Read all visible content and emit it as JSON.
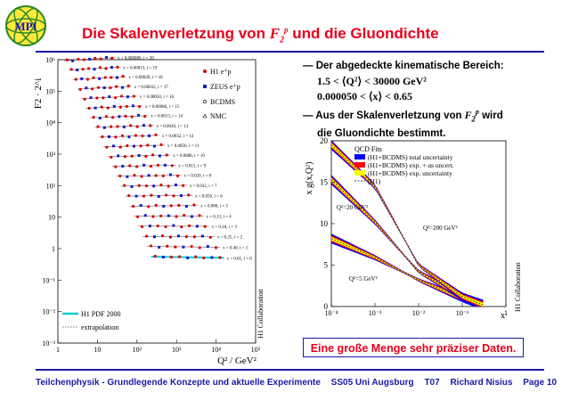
{
  "header": {
    "logo_text": "MPI",
    "title_prefix": "Die Skalenverletzung von ",
    "title_f": "F",
    "title_sub": "2",
    "title_sup": "p",
    "title_suffix": " und die Gluondichte"
  },
  "bullets": {
    "b1": "— Der abgedeckte kinematische Bereich:",
    "m1": "1.5 < ⟨Q²⟩ < 30000 GeV²",
    "m2": "0.000050 < ⟨x⟩ < 0.65",
    "b2_prefix": "— Aus der Skalenverletzung von ",
    "b2_f": "F",
    "b2_sub": "2",
    "b2_sup": "p",
    "b2_suffix": " wird",
    "b3": "die Gluondichte bestimmt."
  },
  "highlight": "Eine große Menge sehr präziser Daten.",
  "footer": {
    "course": "Teilchenphysik - Grundlegende Konzepte und aktuelle Experimente",
    "term": "SS05 Uni Augsburg",
    "code": "T07",
    "author": "Richard Nisius",
    "page": "Page 10"
  },
  "chart_data": [
    {
      "type": "scatter",
      "ylabel": "F2 · 2^i",
      "xlabel": "Q² / GeV²",
      "x_scale": "log",
      "y_scale": "log",
      "xlim": [
        1,
        100000
      ],
      "ylim": [
        0.001,
        1000000
      ],
      "x_ticks": [
        "1",
        "10",
        "10²",
        "10³",
        "10⁴",
        "10⁵"
      ],
      "y_ticks": [
        "10⁶",
        "10⁵",
        "10⁴",
        "10³",
        "10²",
        "10",
        "1",
        "10⁻¹",
        "10⁻²",
        "10⁻³"
      ],
      "legend": [
        "H1 e⁺p",
        "ZEUS e⁺p",
        "BCDMS",
        "NMC"
      ],
      "legend_bottom": [
        "H1 PDF 2000",
        "extrapolation"
      ],
      "side_label": "H1 Collaboration",
      "bin_labels": [
        "x = 0.000050, i = 21",
        "x = 0.000080, i = 20",
        "x = 0.00013, i = 19",
        "x = 0.00020, i = 18",
        "x = 0.00032, i = 17",
        "x = 0.00050, i = 16",
        "x = 0.00080, i = 15",
        "x = 0.0013, i = 14",
        "x = 0.0020, i = 13",
        "x = 0.0032, i = 12",
        "x = 0.0050, i = 11",
        "x = 0.0080, i = 10",
        "x = 0.013, i = 9",
        "x = 0.020, i = 8",
        "x = 0.032, i = 7",
        "x = 0.050, i = 6",
        "x = 0.080, i = 5",
        "x = 0.13, i = 4",
        "x = 0.18, i = 3",
        "x = 0.25, i = 2",
        "x = 0.40, i = 1",
        "x = 0.65, i = 0"
      ]
    },
    {
      "type": "area",
      "title": "QCD Fits",
      "ylabel": "x g(x,Q²)",
      "xlabel": "x",
      "x_scale": "log",
      "xlim": [
        0.0001,
        1
      ],
      "ylim": [
        0,
        20
      ],
      "x_ticks": [
        "10⁻⁴",
        "10⁻³",
        "10⁻²",
        "10⁻¹",
        "1"
      ],
      "y_ticks": [
        "0",
        "5",
        "10",
        "15",
        "20"
      ],
      "legend": [
        {
          "label": "(H1+BCDMS) total uncertainty",
          "color": "#0000ff"
        },
        {
          "label": "(H1+BCDMS) exp. + αs uncert.",
          "color": "#ff0000"
        },
        {
          "label": "(H1+BCDMS) exp. uncertainty",
          "color": "#ffff00"
        },
        {
          "label": "(H1)",
          "color": "#000000"
        }
      ],
      "curve_labels": [
        "Q²=20 GeV²",
        "Q²=200 GeV²",
        "Q²=5 GeV²"
      ],
      "side_label": "H1 Collaboration",
      "series": [
        {
          "name": "Q²=5 GeV²",
          "x": [
            0.0001,
            0.001,
            0.01,
            0.1,
            0.3
          ],
          "y": [
            8.2,
            5.9,
            3.2,
            1.0,
            0.2
          ]
        },
        {
          "name": "Q²=20 GeV²",
          "x": [
            0.0001,
            0.001,
            0.01,
            0.1,
            0.3
          ],
          "y": [
            15.3,
            10.2,
            4.2,
            1.2,
            0.2
          ]
        },
        {
          "name": "Q²=200 GeV²",
          "x": [
            0.0001,
            0.001,
            0.01,
            0.1,
            0.3
          ],
          "y": [
            19.5,
            14.5,
            5.0,
            1.2,
            0.2
          ]
        }
      ]
    }
  ]
}
